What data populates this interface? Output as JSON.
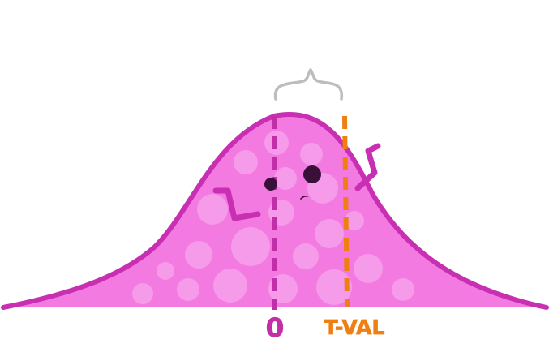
{
  "labels": {
    "zero": "0",
    "t_value": "T-VAL"
  },
  "colors": {
    "curve_fill": "#f27ae0",
    "curve_outline": "#c82fb2",
    "mean_line": "#c02fa8",
    "t_value_line": "#f07f12",
    "t_value_text": "#f07f12",
    "zero_text": "#c32fa7",
    "brace": "#bdbdbd",
    "eyes": "#3a0f3a",
    "bubbles": "#f69be9"
  },
  "icons": {
    "character": "happy-bell-curve-character",
    "brace": "curly-brace-icon"
  }
}
